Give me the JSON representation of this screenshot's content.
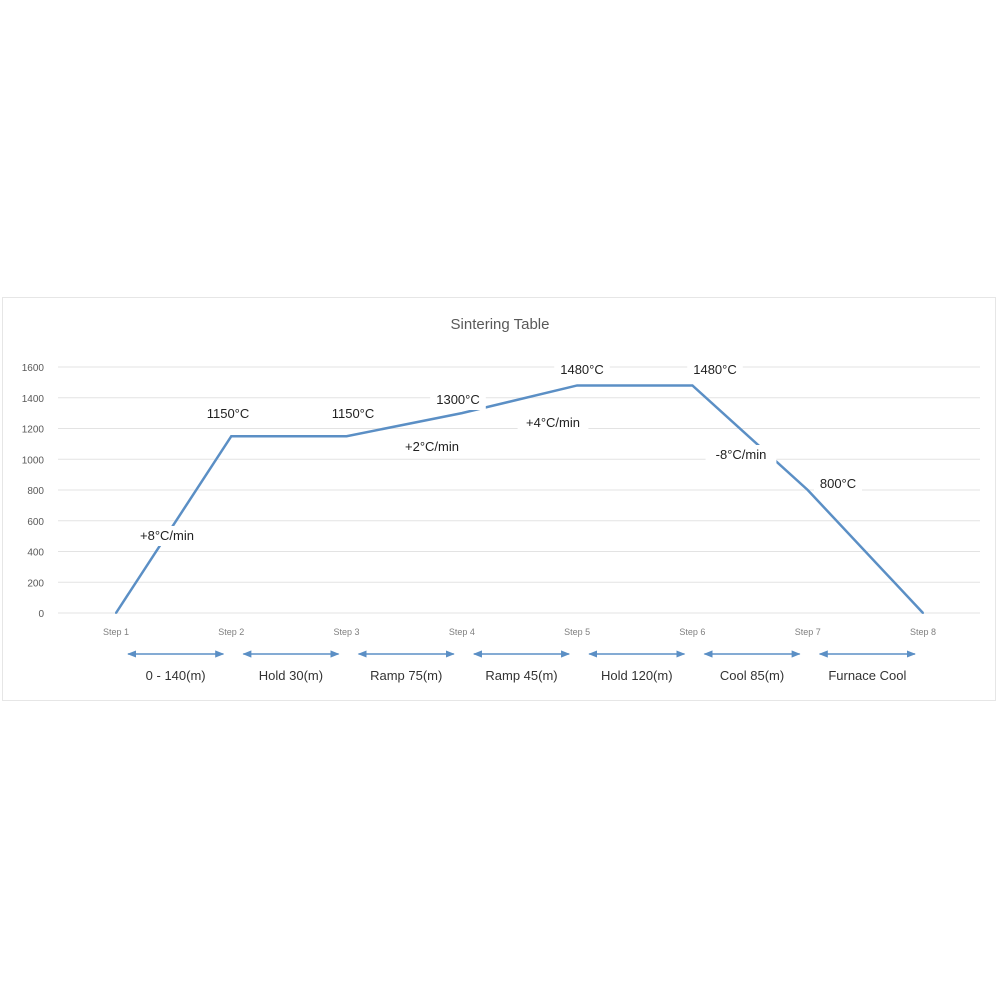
{
  "chart_data": {
    "type": "line",
    "title": "Sintering Table",
    "categories": [
      "Step 1",
      "Step 2",
      "Step 3",
      "Step 4",
      "Step 5",
      "Step 6",
      "Step 7",
      "Step 8"
    ],
    "series": [
      {
        "values": [
          0,
          1150,
          1150,
          1300,
          1480,
          1480,
          800,
          0
        ]
      }
    ],
    "ylim": [
      0,
      1600
    ],
    "yticks": [
      0,
      200,
      400,
      600,
      800,
      1000,
      1200,
      1400,
      1600
    ],
    "grid": true,
    "line_color": "#5b8fc5",
    "point_labels": [
      "1150°C",
      "1150°C",
      "1300°C",
      "1480°C",
      "1480°C",
      "800°C"
    ],
    "rate_labels": [
      "+8°C/min",
      "+2°C/min",
      "+4°C/min",
      "-8°C/min"
    ],
    "segments": [
      "0 - 140(m)",
      "Hold 30(m)",
      "Ramp 75(m)",
      "Ramp 45(m)",
      "Hold 120(m)",
      "Cool 85(m)",
      "Furnace Cool"
    ]
  }
}
